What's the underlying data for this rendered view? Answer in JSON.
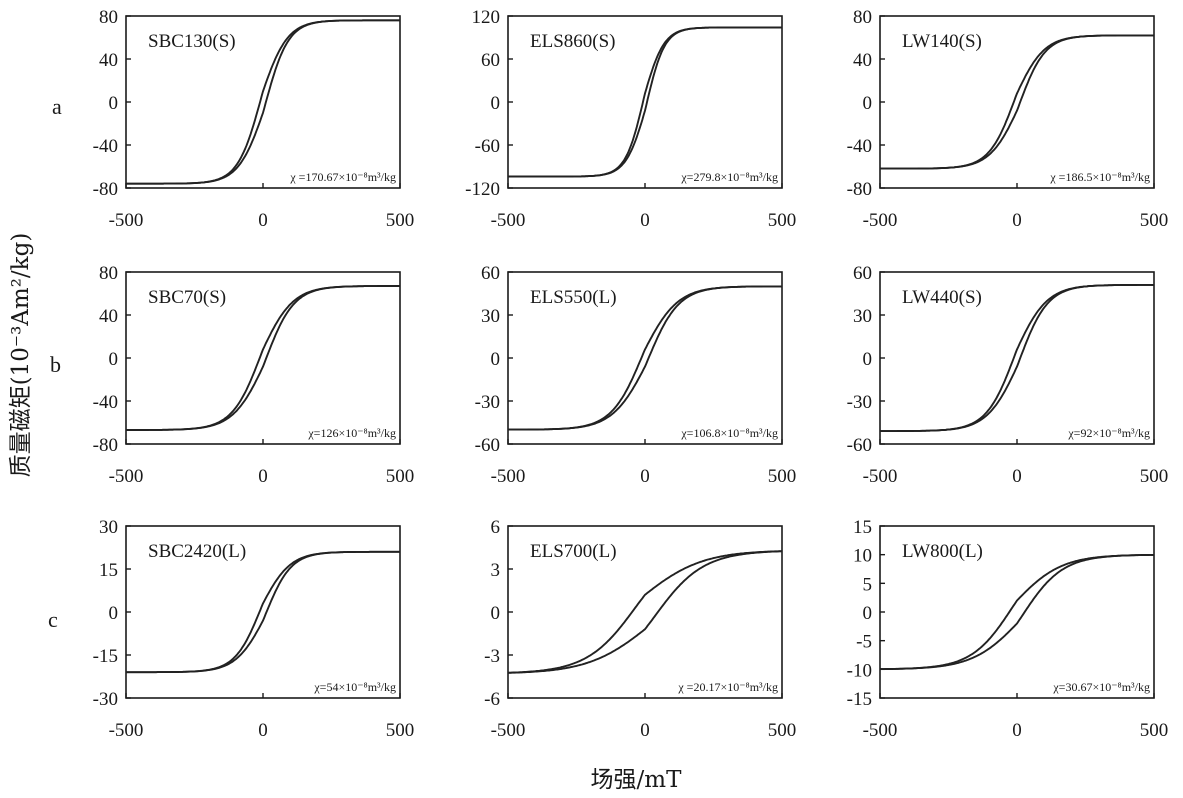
{
  "figure": {
    "xlabel": "场强/mT",
    "ylabel": "质量磁矩(10⁻³Am²/kg)",
    "row_labels": [
      "a",
      "b",
      "c"
    ]
  },
  "chart_data": [
    {
      "type": "line",
      "title": "SBC130(S)",
      "annotation": "χ =170.67×10⁻⁸m³/kg",
      "row": 0,
      "col": 0,
      "xlim": [
        -500,
        500
      ],
      "ylim": [
        -80,
        80
      ],
      "xticks": [
        -500,
        0,
        500
      ],
      "yticks": [
        80,
        40,
        0,
        -40,
        -80
      ],
      "ytick_labels": [
        "80",
        "40",
        "0",
        "-40",
        "-80"
      ],
      "Ms": 76,
      "Mr": 10,
      "Hc": 10,
      "Hs": 90,
      "grid": false,
      "series": [
        {
          "branch": "descending",
          "x": [
            500,
            400,
            300,
            200,
            100,
            50,
            10,
            0,
            -50,
            -100,
            -200,
            -300,
            -400,
            -500
          ],
          "y": [
            75,
            73,
            70,
            64,
            50,
            35,
            15,
            10,
            -17,
            -37,
            -58,
            -68,
            -72,
            -74
          ]
        },
        {
          "branch": "ascending",
          "x": [
            -500,
            -400,
            -300,
            -200,
            -100,
            -50,
            -10,
            0,
            50,
            100,
            200,
            300,
            400,
            500
          ],
          "y": [
            -75,
            -73,
            -70,
            -64,
            -50,
            -35,
            -15,
            -10,
            17,
            37,
            58,
            68,
            72,
            74
          ]
        }
      ]
    },
    {
      "type": "line",
      "title": "ELS860(S)",
      "annotation": "χ=279.8×10⁻⁸m³/kg",
      "row": 0,
      "col": 1,
      "xlim": [
        -500,
        500
      ],
      "ylim": [
        -120,
        120
      ],
      "xticks": [
        -500,
        0,
        500
      ],
      "yticks": [
        120,
        60,
        0,
        -60,
        -120
      ],
      "ytick_labels": [
        "120",
        "60",
        "0",
        "-60",
        "-120"
      ],
      "Ms": 104,
      "Mr": 12,
      "Hc": 8,
      "Hs": 70,
      "grid": false,
      "series": [
        {
          "branch": "descending",
          "x": [
            500,
            400,
            300,
            200,
            100,
            50,
            8,
            0,
            -50,
            -100,
            -200,
            -300,
            -400,
            -500
          ],
          "y": [
            104,
            101,
            97,
            90,
            76,
            58,
            15,
            12,
            -40,
            -70,
            -88,
            -96,
            -100,
            -103
          ]
        },
        {
          "branch": "ascending",
          "x": [
            -500,
            -400,
            -300,
            -200,
            -100,
            -50,
            -8,
            0,
            50,
            100,
            200,
            300,
            400,
            500
          ],
          "y": [
            -104,
            -101,
            -97,
            -90,
            -76,
            -58,
            -15,
            -12,
            40,
            70,
            88,
            96,
            100,
            103
          ]
        }
      ]
    },
    {
      "type": "line",
      "title": "LW140(S)",
      "annotation": "χ =186.5×10⁻⁸m³/kg",
      "row": 0,
      "col": 2,
      "xlim": [
        -500,
        500
      ],
      "ylim": [
        -80,
        80
      ],
      "xticks": [
        -500,
        0,
        500
      ],
      "yticks": [
        80,
        40,
        0,
        -40,
        -80
      ],
      "ytick_labels": [
        "80",
        "40",
        "0",
        "-40",
        "-80"
      ],
      "Ms": 62,
      "Mr": 8,
      "Hc": 10,
      "Hs": 100,
      "grid": false,
      "series": [
        {
          "branch": "descending",
          "x": [
            500,
            400,
            300,
            200,
            100,
            50,
            10,
            0,
            -50,
            -100,
            -200,
            -300,
            -400,
            -500
          ],
          "y": [
            61,
            60,
            57,
            51,
            38,
            26,
            10,
            8,
            -14,
            -30,
            -46,
            -55,
            -59,
            -61
          ]
        },
        {
          "branch": "ascending",
          "x": [
            -500,
            -400,
            -300,
            -200,
            -100,
            -50,
            -10,
            0,
            50,
            100,
            200,
            300,
            400,
            500
          ],
          "y": [
            -62,
            -60,
            -57,
            -51,
            -38,
            -26,
            -10,
            -8,
            14,
            30,
            46,
            55,
            59,
            61
          ]
        }
      ]
    },
    {
      "type": "line",
      "title": "SBC70(S)",
      "annotation": "χ=126×10⁻⁸m³/kg",
      "row": 1,
      "col": 0,
      "xlim": [
        -500,
        500
      ],
      "ylim": [
        -80,
        80
      ],
      "xticks": [
        -500,
        0,
        500
      ],
      "yticks": [
        80,
        40,
        0,
        -40,
        -80
      ],
      "ytick_labels": [
        "80",
        "40",
        "0",
        "-40",
        "-80"
      ],
      "Ms": 67,
      "Mr": 8,
      "Hc": 12,
      "Hs": 110,
      "grid": false,
      "series": [
        {
          "branch": "descending",
          "x": [
            500,
            400,
            300,
            200,
            100,
            50,
            12,
            0,
            -50,
            -100,
            -200,
            -300,
            -400,
            -500
          ],
          "y": [
            67,
            65,
            62,
            55,
            40,
            26,
            8,
            6,
            -16,
            -32,
            -50,
            -60,
            -64,
            -66
          ]
        },
        {
          "branch": "ascending",
          "x": [
            -500,
            -400,
            -300,
            -200,
            -100,
            -50,
            -12,
            0,
            50,
            100,
            200,
            300,
            400,
            500
          ],
          "y": [
            -67,
            -65,
            -62,
            -55,
            -40,
            -26,
            -8,
            -6,
            16,
            32,
            50,
            60,
            64,
            66
          ]
        }
      ]
    },
    {
      "type": "line",
      "title": "ELS550(L)",
      "annotation": "χ=106.8×10⁻⁸m³/kg",
      "row": 1,
      "col": 1,
      "xlim": [
        -500,
        500
      ],
      "ylim": [
        -60,
        60
      ],
      "xticks": [
        -500,
        0,
        500
      ],
      "yticks": [
        60,
        30,
        0,
        -30,
        -60
      ],
      "ytick_labels": [
        "60",
        "30",
        "0",
        "-30",
        "-60"
      ],
      "Ms": 50,
      "Mr": 6,
      "Hc": 15,
      "Hs": 120,
      "grid": false,
      "series": [
        {
          "branch": "descending",
          "x": [
            500,
            400,
            300,
            200,
            100,
            50,
            15,
            0,
            -50,
            -100,
            -200,
            -300,
            -400,
            -500
          ],
          "y": [
            49,
            48,
            45,
            40,
            29,
            19,
            6,
            3,
            -12,
            -23,
            -37,
            -44,
            -47,
            -49
          ]
        },
        {
          "branch": "ascending",
          "x": [
            -500,
            -400,
            -300,
            -200,
            -100,
            -50,
            -15,
            0,
            50,
            100,
            200,
            300,
            400,
            500
          ],
          "y": [
            -50,
            -48,
            -45,
            -40,
            -29,
            -19,
            -6,
            -3,
            12,
            23,
            37,
            44,
            47,
            49
          ]
        }
      ]
    },
    {
      "type": "line",
      "title": "LW440(S)",
      "annotation": "χ=92×10⁻⁸m³/kg",
      "row": 1,
      "col": 2,
      "xlim": [
        -500,
        500
      ],
      "ylim": [
        -60,
        60
      ],
      "xticks": [
        -500,
        0,
        500
      ],
      "yticks": [
        60,
        30,
        0,
        -30,
        -60
      ],
      "ytick_labels": [
        "60",
        "30",
        "0",
        "-30",
        "-60"
      ],
      "Ms": 51,
      "Mr": 6,
      "Hc": 12,
      "Hs": 110,
      "grid": false,
      "series": [
        {
          "branch": "descending",
          "x": [
            500,
            400,
            300,
            200,
            100,
            50,
            12,
            0,
            -50,
            -100,
            -200,
            -300,
            -400,
            -500
          ],
          "y": [
            51,
            49,
            47,
            42,
            31,
            20,
            6,
            4,
            -12,
            -24,
            -38,
            -46,
            -49,
            -50
          ]
        },
        {
          "branch": "ascending",
          "x": [
            -500,
            -400,
            -300,
            -200,
            -100,
            -50,
            -12,
            0,
            50,
            100,
            200,
            300,
            400,
            500
          ],
          "y": [
            -51,
            -49,
            -47,
            -42,
            -31,
            -20,
            -6,
            -4,
            12,
            24,
            38,
            46,
            49,
            50
          ]
        }
      ]
    },
    {
      "type": "line",
      "title": "SBC2420(L)",
      "annotation": "χ=54×10⁻⁸m³/kg",
      "row": 2,
      "col": 0,
      "xlim": [
        -500,
        500
      ],
      "ylim": [
        -30,
        30
      ],
      "xticks": [
        -500,
        0,
        500
      ],
      "yticks": [
        30,
        15,
        0,
        -15,
        -30
      ],
      "ytick_labels": [
        "30",
        "15",
        "0",
        "-15",
        "-30"
      ],
      "Ms": 21,
      "Mr": 3,
      "Hc": 12,
      "Hs": 100,
      "grid": false,
      "series": [
        {
          "branch": "descending",
          "x": [
            500,
            400,
            300,
            200,
            100,
            50,
            12,
            0,
            -50,
            -100,
            -200,
            -300,
            -400,
            -500
          ],
          "y": [
            21,
            20.5,
            19.5,
            17,
            12.5,
            8,
            3,
            2,
            -5,
            -10,
            -16,
            -19,
            -20.5,
            -21
          ]
        },
        {
          "branch": "ascending",
          "x": [
            -500,
            -400,
            -300,
            -200,
            -100,
            -50,
            -12,
            0,
            50,
            100,
            200,
            300,
            400,
            500
          ],
          "y": [
            -21,
            -20.5,
            -19.5,
            -17,
            -12.5,
            -8,
            -3,
            -2,
            5,
            10,
            16,
            19,
            20.5,
            21
          ]
        }
      ]
    },
    {
      "type": "line",
      "title": "ELS700(L)",
      "annotation": "χ =20.17×10⁻⁸m³/kg",
      "row": 2,
      "col": 1,
      "xlim": [
        -500,
        500
      ],
      "ylim": [
        -6,
        6
      ],
      "xticks": [
        -500,
        0,
        500
      ],
      "yticks": [
        6,
        3,
        0,
        -3,
        -6
      ],
      "ytick_labels": [
        "6",
        "3",
        "0",
        "-3",
        "-6"
      ],
      "Ms": 4.3,
      "Mr": 1.2,
      "Hc": 25,
      "Hs": 200,
      "grid": false,
      "series": [
        {
          "branch": "descending",
          "x": [
            500,
            400,
            300,
            200,
            100,
            50,
            25,
            0,
            -50,
            -100,
            -200,
            -300,
            -400,
            -500
          ],
          "y": [
            4.3,
            4.2,
            4.0,
            3.6,
            2.8,
            2.0,
            1.2,
            0.2,
            -1.6,
            -2.3,
            -3.0,
            -3.4,
            -3.7,
            -3.9
          ]
        },
        {
          "branch": "ascending",
          "x": [
            -500,
            -400,
            -300,
            -200,
            -100,
            -50,
            -25,
            0,
            50,
            100,
            200,
            300,
            400,
            500
          ],
          "y": [
            -4.3,
            -4.1,
            -3.9,
            -3.6,
            -2.9,
            -2.1,
            -1.2,
            -0.4,
            1.4,
            2.2,
            3.0,
            3.5,
            3.8,
            4.1
          ]
        }
      ]
    },
    {
      "type": "line",
      "title": "LW800(L)",
      "annotation": "χ=30.67×10⁻⁸m³/kg",
      "row": 2,
      "col": 2,
      "xlim": [
        -500,
        500
      ],
      "ylim": [
        -15,
        15
      ],
      "xticks": [
        -500,
        0,
        500
      ],
      "yticks": [
        15,
        10,
        5,
        0,
        -5,
        -10,
        -15
      ],
      "ytick_labels": [
        "15",
        "10",
        "5",
        "0",
        "-5",
        "-10",
        "-15"
      ],
      "Ms": 10,
      "Mr": 2,
      "Hc": 25,
      "Hs": 160,
      "grid": false,
      "series": [
        {
          "branch": "descending",
          "x": [
            500,
            400,
            300,
            200,
            100,
            50,
            25,
            0,
            -50,
            -100,
            -200,
            -300,
            -400,
            -500
          ],
          "y": [
            10,
            9.8,
            9.5,
            8.8,
            6.8,
            4.6,
            2.2,
            1.4,
            -2.8,
            -5.0,
            -7.6,
            -8.8,
            -9.4,
            -9.8
          ]
        },
        {
          "branch": "ascending",
          "x": [
            -500,
            -400,
            -300,
            -200,
            -100,
            -50,
            -25,
            0,
            50,
            100,
            200,
            300,
            400,
            500
          ],
          "y": [
            -10,
            -9.8,
            -9.5,
            -8.8,
            -6.8,
            -4.6,
            -2.2,
            -1.4,
            2.8,
            5.0,
            7.6,
            8.8,
            9.4,
            9.8
          ]
        }
      ]
    }
  ]
}
